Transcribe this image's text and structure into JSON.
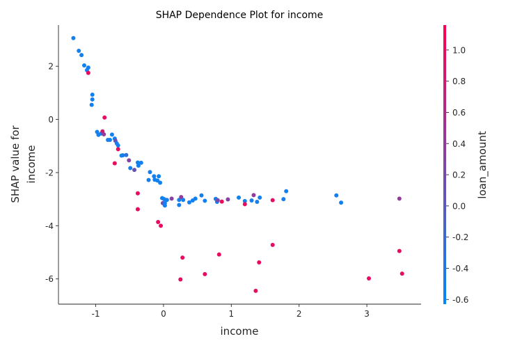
{
  "chart_data": {
    "type": "scatter",
    "title": "SHAP Dependence Plot for income",
    "xlabel": "income",
    "ylabel": [
      "SHAP value for",
      "income"
    ],
    "colorbar_label": "loan_amount",
    "xlim": [
      -1.55,
      3.8
    ],
    "ylim": [
      -6.95,
      3.55
    ],
    "xticks": [
      -1,
      0,
      1,
      2,
      3
    ],
    "xtick_labels": [
      "-1",
      "0",
      "1",
      "2",
      "3"
    ],
    "yticks": [
      2,
      0,
      -2,
      -4,
      -6
    ],
    "ytick_labels": [
      "2",
      "0",
      "-2",
      "-4",
      "-6"
    ],
    "clim": [
      -0.63,
      1.16
    ],
    "cticks": [
      1.0,
      0.8,
      0.6,
      0.4,
      0.2,
      0.0,
      -0.2,
      -0.4,
      -0.6
    ],
    "ctick_labels": [
      "1.0",
      "0.8",
      "0.6",
      "0.4",
      "0.2",
      "0.0",
      "-0.2",
      "-0.4",
      "-0.6"
    ],
    "colormap": [
      "#008afb",
      "#ff0052"
    ],
    "grid": false,
    "points": [
      {
        "x": -1.33,
        "y": 3.06,
        "c": -0.5
      },
      {
        "x": -1.25,
        "y": 2.58,
        "c": -0.5
      },
      {
        "x": -1.21,
        "y": 2.42,
        "c": -0.5
      },
      {
        "x": -1.17,
        "y": 2.03,
        "c": -0.5
      },
      {
        "x": -1.11,
        "y": 1.95,
        "c": -0.5
      },
      {
        "x": -1.13,
        "y": 1.85,
        "c": -0.5
      },
      {
        "x": -1.11,
        "y": 1.75,
        "c": 1.0
      },
      {
        "x": -1.05,
        "y": 0.93,
        "c": -0.5
      },
      {
        "x": -1.05,
        "y": 0.75,
        "c": -0.5
      },
      {
        "x": -1.06,
        "y": 0.55,
        "c": -0.5
      },
      {
        "x": -0.98,
        "y": -0.47,
        "c": -0.5
      },
      {
        "x": -0.96,
        "y": -0.58,
        "c": -0.5
      },
      {
        "x": -0.92,
        "y": -0.53,
        "c": -0.5
      },
      {
        "x": -0.9,
        "y": -0.45,
        "c": 0.85
      },
      {
        "x": -0.88,
        "y": -0.56,
        "c": 0.4
      },
      {
        "x": -0.87,
        "y": 0.07,
        "c": 1.0
      },
      {
        "x": -0.82,
        "y": -0.77,
        "c": -0.5
      },
      {
        "x": -0.79,
        "y": -0.77,
        "c": -0.5
      },
      {
        "x": -0.76,
        "y": -0.57,
        "c": -0.5
      },
      {
        "x": -0.72,
        "y": -0.72,
        "c": -0.5
      },
      {
        "x": -0.71,
        "y": -0.8,
        "c": 0.1
      },
      {
        "x": -0.69,
        "y": -0.9,
        "c": -0.5
      },
      {
        "x": -0.67,
        "y": -0.98,
        "c": -0.5
      },
      {
        "x": -0.67,
        "y": -1.12,
        "c": 1.0
      },
      {
        "x": -0.72,
        "y": -1.65,
        "c": 1.0
      },
      {
        "x": -0.62,
        "y": -1.36,
        "c": -0.5
      },
      {
        "x": -0.6,
        "y": -1.35,
        "c": -0.5
      },
      {
        "x": -0.55,
        "y": -1.34,
        "c": -0.3
      },
      {
        "x": -0.51,
        "y": -1.54,
        "c": 0.3
      },
      {
        "x": -0.49,
        "y": -1.83,
        "c": -0.5
      },
      {
        "x": -0.43,
        "y": -1.9,
        "c": 0.1
      },
      {
        "x": -0.38,
        "y": -1.62,
        "c": -0.5
      },
      {
        "x": -0.37,
        "y": -1.74,
        "c": -0.5
      },
      {
        "x": -0.33,
        "y": -1.63,
        "c": -0.5
      },
      {
        "x": -0.38,
        "y": -2.78,
        "c": 1.0
      },
      {
        "x": -0.38,
        "y": -3.38,
        "c": 1.0
      },
      {
        "x": -0.2,
        "y": -1.98,
        "c": -0.5
      },
      {
        "x": -0.22,
        "y": -2.28,
        "c": -0.5
      },
      {
        "x": -0.14,
        "y": -2.14,
        "c": -0.5
      },
      {
        "x": -0.13,
        "y": -2.27,
        "c": -0.5
      },
      {
        "x": -0.09,
        "y": -2.3,
        "c": -0.5
      },
      {
        "x": -0.07,
        "y": -2.14,
        "c": -0.5
      },
      {
        "x": -0.05,
        "y": -2.38,
        "c": -0.5
      },
      {
        "x": -0.08,
        "y": -3.86,
        "c": 1.0
      },
      {
        "x": -0.04,
        "y": -4.0,
        "c": 1.0
      },
      {
        "x": -0.02,
        "y": -2.96,
        "c": -0.5
      },
      {
        "x": -0.01,
        "y": -3.15,
        "c": 0.3
      },
      {
        "x": 0.01,
        "y": -3.0,
        "c": -0.5
      },
      {
        "x": 0.02,
        "y": -3.15,
        "c": -0.5
      },
      {
        "x": 0.02,
        "y": -3.24,
        "c": -0.5
      },
      {
        "x": 0.05,
        "y": -3.03,
        "c": -0.5
      },
      {
        "x": 0.12,
        "y": -2.98,
        "c": 0.3
      },
      {
        "x": 0.23,
        "y": -3.03,
        "c": -0.5
      },
      {
        "x": 0.23,
        "y": -3.22,
        "c": -0.5
      },
      {
        "x": 0.26,
        "y": -2.92,
        "c": 0.4
      },
      {
        "x": 0.29,
        "y": -3.03,
        "c": -0.5
      },
      {
        "x": 0.28,
        "y": -5.2,
        "c": 1.0
      },
      {
        "x": 0.25,
        "y": -6.02,
        "c": 1.0
      },
      {
        "x": 0.38,
        "y": -3.12,
        "c": -0.5
      },
      {
        "x": 0.43,
        "y": -3.05,
        "c": -0.5
      },
      {
        "x": 0.47,
        "y": -2.98,
        "c": -0.5
      },
      {
        "x": 0.56,
        "y": -2.86,
        "c": -0.5
      },
      {
        "x": 0.61,
        "y": -3.06,
        "c": -0.5
      },
      {
        "x": 0.61,
        "y": -5.82,
        "c": 1.0
      },
      {
        "x": 0.77,
        "y": -2.99,
        "c": -0.5
      },
      {
        "x": 0.79,
        "y": -3.1,
        "c": -0.5
      },
      {
        "x": 0.8,
        "y": -3.04,
        "c": 0.2
      },
      {
        "x": 0.82,
        "y": -5.08,
        "c": 1.0
      },
      {
        "x": 0.86,
        "y": -3.09,
        "c": 1.0
      },
      {
        "x": 0.95,
        "y": -3.01,
        "c": 0.3
      },
      {
        "x": 1.11,
        "y": -2.94,
        "c": -0.5
      },
      {
        "x": 1.2,
        "y": -3.07,
        "c": -0.5
      },
      {
        "x": 1.2,
        "y": -3.19,
        "c": 1.0
      },
      {
        "x": 1.3,
        "y": -3.05,
        "c": -0.5
      },
      {
        "x": 1.33,
        "y": -2.85,
        "c": 0.4
      },
      {
        "x": 1.38,
        "y": -3.1,
        "c": -0.5
      },
      {
        "x": 1.42,
        "y": -2.94,
        "c": -0.5
      },
      {
        "x": 1.41,
        "y": -5.38,
        "c": 1.0
      },
      {
        "x": 1.36,
        "y": -6.45,
        "c": 1.0
      },
      {
        "x": 1.61,
        "y": -3.04,
        "c": 1.0
      },
      {
        "x": 1.61,
        "y": -4.72,
        "c": 1.0
      },
      {
        "x": 1.77,
        "y": -3.0,
        "c": -0.5
      },
      {
        "x": 1.81,
        "y": -2.7,
        "c": -0.5
      },
      {
        "x": 2.55,
        "y": -2.86,
        "c": -0.5
      },
      {
        "x": 2.62,
        "y": -3.13,
        "c": -0.5
      },
      {
        "x": 3.03,
        "y": -5.98,
        "c": 1.0
      },
      {
        "x": 3.48,
        "y": -2.98,
        "c": 0.4
      },
      {
        "x": 3.48,
        "y": -4.95,
        "c": 1.0
      },
      {
        "x": 3.52,
        "y": -5.8,
        "c": 1.0
      }
    ]
  }
}
